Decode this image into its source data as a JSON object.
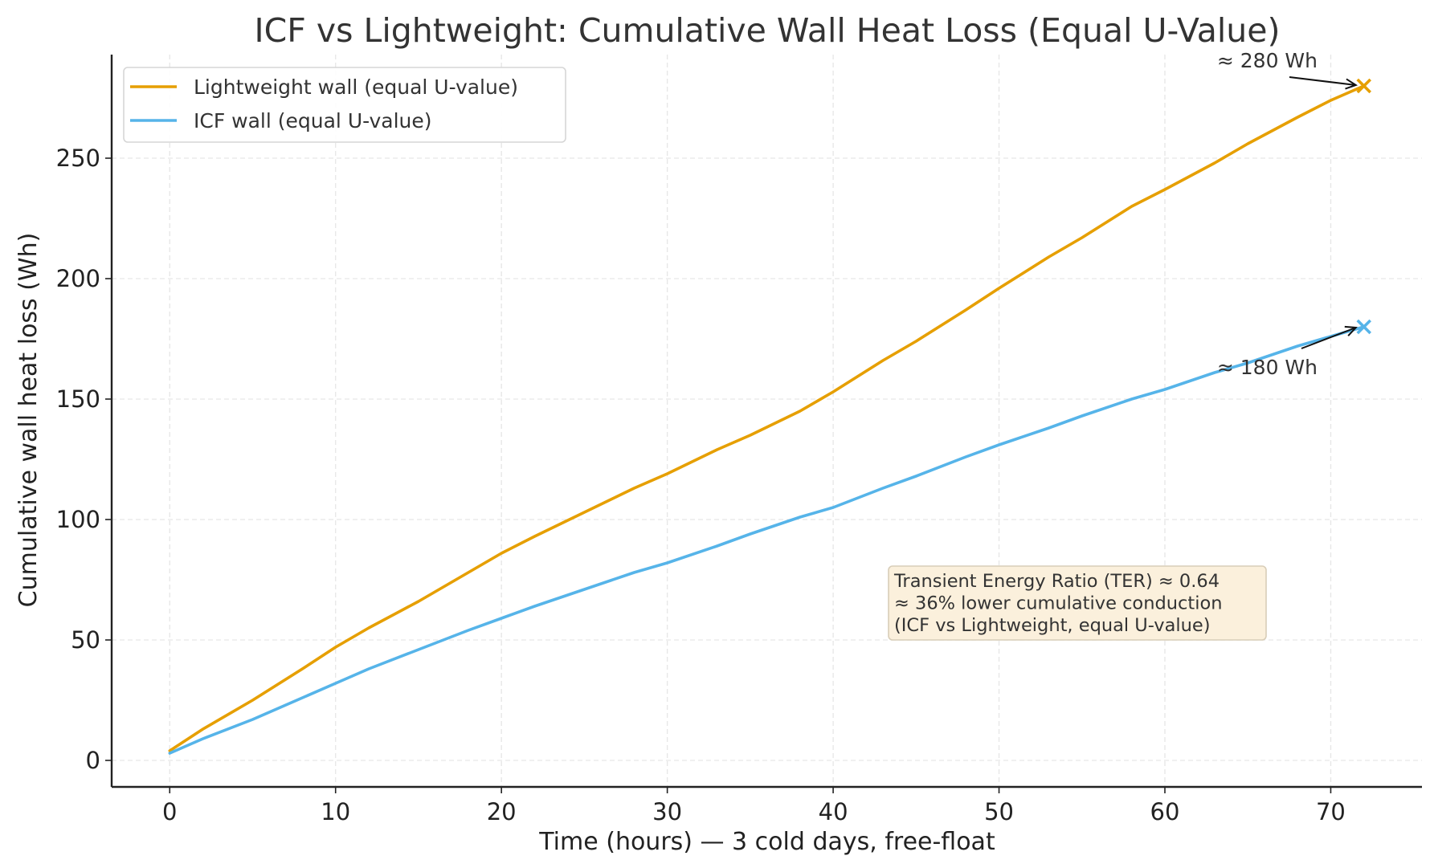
{
  "chart_data": {
    "type": "line",
    "title": "ICF vs Lightweight: Cumulative Wall Heat Loss (Equal U-Value)",
    "xlabel": "Time (hours) — 3 cold days, free-float",
    "ylabel": "Cumulative wall heat loss (Wh)",
    "xlim": [
      -3.5,
      75.5
    ],
    "ylim": [
      -11,
      293
    ],
    "xticks": [
      0,
      10,
      20,
      30,
      40,
      50,
      60,
      70
    ],
    "yticks": [
      0,
      50,
      100,
      150,
      200,
      250
    ],
    "grid": true,
    "legend_position": "top-left",
    "series": [
      {
        "name": "Lightweight wall (equal U-value)",
        "color": "#E69F00",
        "x": [
          0,
          2,
          5,
          8,
          10,
          12,
          15,
          18,
          20,
          22,
          25,
          28,
          30,
          33,
          35,
          38,
          40,
          43,
          45,
          48,
          50,
          53,
          55,
          58,
          60,
          63,
          65,
          68,
          70,
          72
        ],
        "y": [
          4,
          13,
          25,
          38,
          47,
          55,
          66,
          78,
          86,
          93,
          103,
          113,
          119,
          129,
          135,
          145,
          153,
          166,
          174,
          187,
          196,
          209,
          217,
          230,
          237,
          248,
          256,
          267,
          274,
          280
        ]
      },
      {
        "name": "ICF wall (equal U-value)",
        "color": "#56B4E9",
        "x": [
          0,
          2,
          5,
          8,
          10,
          12,
          15,
          18,
          20,
          22,
          25,
          28,
          30,
          33,
          35,
          38,
          40,
          43,
          45,
          48,
          50,
          53,
          55,
          58,
          60,
          63,
          65,
          68,
          70,
          72
        ],
        "y": [
          3,
          9,
          17,
          26,
          32,
          38,
          46,
          54,
          59,
          64,
          71,
          78,
          82,
          89,
          94,
          101,
          105,
          113,
          118,
          126,
          131,
          138,
          143,
          150,
          154,
          161,
          165,
          172,
          176,
          180
        ]
      }
    ],
    "endpoint_markers": [
      {
        "series": "Lightweight wall (equal U-value)",
        "x": 72,
        "y": 280,
        "marker": "x",
        "label": "≈ 280 Wh"
      },
      {
        "series": "ICF wall (equal U-value)",
        "x": 72,
        "y": 180,
        "marker": "x",
        "label": "≈ 180 Wh"
      }
    ],
    "annotation_box": {
      "lines": [
        "Transient Energy Ratio (TER) ≈ 0.64",
        "≈ 36% lower cumulative conduction",
        "(ICF vs Lightweight, equal U-value)"
      ],
      "background": "#FBF0DC"
    }
  }
}
